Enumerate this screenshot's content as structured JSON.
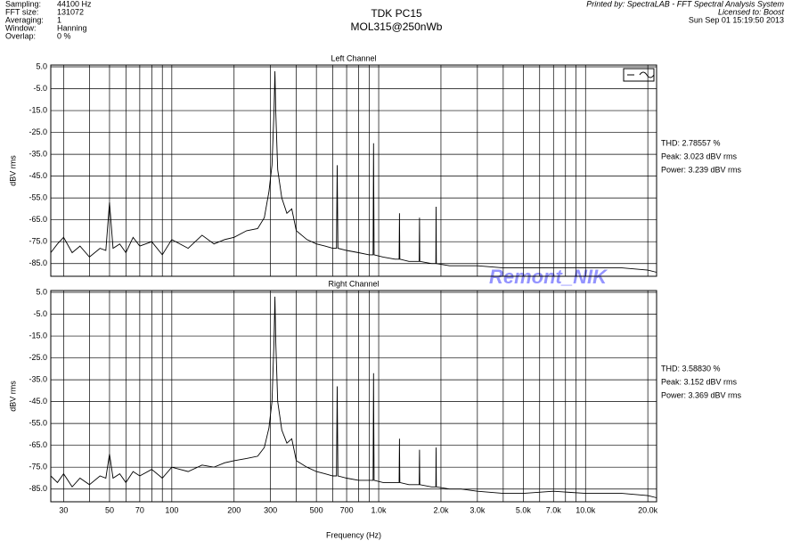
{
  "header": {
    "settings": [
      {
        "label": "Sampling:",
        "value": "44100 Hz"
      },
      {
        "label": "FFT size:",
        "value": "131072"
      },
      {
        "label": "Averaging:",
        "value": "1"
      },
      {
        "label": "Window:",
        "value": "Hanning"
      },
      {
        "label": "Overlap:",
        "value": "0 %"
      }
    ],
    "title": "TDK PC15",
    "subtitle": "MOL315@250nWb",
    "printed_by": "Printed by: SpectraLAB - FFT Spectral Analysis System",
    "licensed_to": "Licensed to: Boost",
    "date": "Sun Sep 01 15:19:50 2013",
    "watermark": "Remont_NIK"
  },
  "chart_data": [
    {
      "type": "line",
      "title": "Left Channel",
      "y_label": "dBV rms",
      "log_x": true,
      "grid": true,
      "color": "#000000",
      "xlim": [
        26,
        22050
      ],
      "ylim": [
        -90,
        5
      ],
      "xticks": [
        30,
        50,
        70,
        100,
        200,
        300,
        500,
        700,
        1000,
        2000,
        3000,
        5000,
        7000,
        10000,
        20000
      ],
      "xminor": [
        40,
        60,
        80,
        90,
        400,
        600,
        800,
        900,
        4000,
        6000,
        8000,
        9000
      ],
      "yticks": [
        {
          "value": 5,
          "label": "5.0"
        },
        {
          "value": -5,
          "label": "-5.0"
        },
        {
          "value": -15,
          "label": "-15.0"
        },
        {
          "value": -25,
          "label": "-25.0"
        },
        {
          "value": -35,
          "label": "-35.0"
        },
        {
          "value": -45,
          "label": "-45.0"
        },
        {
          "value": -55,
          "label": "-55.0"
        },
        {
          "value": -65,
          "label": "-65.0"
        },
        {
          "value": -75,
          "label": "-75.0"
        },
        {
          "value": -85,
          "label": "-85.0"
        }
      ],
      "annotations": [
        "THD: 2.78557 %",
        "Peak: 3.023 dBV rms",
        "Power: 3.239 dBV rms"
      ],
      "x": [
        26,
        28,
        30,
        33,
        36,
        40,
        45,
        48,
        50,
        52,
        56,
        60,
        65,
        70,
        80,
        90,
        100,
        120,
        140,
        160,
        180,
        200,
        230,
        260,
        280,
        295,
        305,
        312,
        315,
        318,
        325,
        340,
        360,
        380,
        400,
        450,
        500,
        550,
        600,
        625,
        630,
        635,
        700,
        800,
        900,
        940,
        945,
        950,
        1050,
        1200,
        1255,
        1260,
        1265,
        1400,
        1570,
        1575,
        1580,
        1800,
        1890,
        1895,
        1900,
        2200,
        2500,
        3000,
        4000,
        5000,
        7000,
        10000,
        15000,
        20000,
        22050
      ],
      "series": [
        {
          "values": [
            -80,
            -76,
            -73,
            -80,
            -77,
            -82,
            -78,
            -79,
            -57,
            -78,
            -76,
            -80,
            -73,
            -77,
            -75,
            -81,
            -74,
            -78,
            -72,
            -76,
            -74,
            -73,
            -70,
            -69,
            -64,
            -52,
            -40,
            -15,
            3,
            -15,
            -42,
            -55,
            -62,
            -60,
            -70,
            -74,
            -76,
            -77,
            -78,
            -78,
            -40,
            -78,
            -79,
            -80,
            -81,
            -81,
            -30,
            -81,
            -82,
            -83,
            -83,
            -62,
            -83,
            -84,
            -84,
            -64,
            -84,
            -85,
            -85,
            -59,
            -85,
            -86,
            -86,
            -86,
            -87,
            -87,
            -87,
            -87,
            -87,
            -88,
            -89
          ]
        }
      ]
    },
    {
      "type": "line",
      "title": "Right Channel",
      "y_label": "dBV rms",
      "x_label": "Frequency (Hz)",
      "log_x": true,
      "grid": true,
      "color": "#000000",
      "xlim": [
        26,
        22050
      ],
      "ylim": [
        -90,
        5
      ],
      "xticks": [
        30,
        50,
        70,
        100,
        200,
        300,
        500,
        700,
        {
          "value": 1000,
          "label": "1.0k"
        },
        {
          "value": 2000,
          "label": "2.0k"
        },
        {
          "value": 3000,
          "label": "3.0k"
        },
        {
          "value": 5000,
          "label": "5.0k"
        },
        {
          "value": 7000,
          "label": "7.0k"
        },
        {
          "value": 10000,
          "label": "10.0k"
        },
        {
          "value": 20000,
          "label": "20.0k"
        }
      ],
      "xminor": [
        40,
        60,
        80,
        90,
        400,
        600,
        800,
        900,
        4000,
        6000,
        8000,
        9000
      ],
      "yticks": [
        {
          "value": 5,
          "label": "5.0"
        },
        {
          "value": -5,
          "label": "-5.0"
        },
        {
          "value": -15,
          "label": "-15.0"
        },
        {
          "value": -25,
          "label": "-25.0"
        },
        {
          "value": -35,
          "label": "-35.0"
        },
        {
          "value": -45,
          "label": "-45.0"
        },
        {
          "value": -55,
          "label": "-55.0"
        },
        {
          "value": -65,
          "label": "-65.0"
        },
        {
          "value": -75,
          "label": "-75.0"
        },
        {
          "value": -85,
          "label": "-85.0"
        }
      ],
      "annotations": [
        "THD: 3.58830 %",
        "Peak: 3.152 dBV rms",
        "Power: 3.369 dBV rms"
      ],
      "x": [
        26,
        28,
        30,
        33,
        36,
        40,
        45,
        48,
        50,
        52,
        56,
        60,
        65,
        70,
        80,
        90,
        100,
        120,
        140,
        160,
        180,
        200,
        230,
        260,
        280,
        295,
        305,
        312,
        315,
        318,
        325,
        340,
        360,
        380,
        400,
        450,
        500,
        550,
        600,
        625,
        630,
        635,
        700,
        800,
        900,
        940,
        945,
        950,
        1050,
        1200,
        1255,
        1260,
        1265,
        1400,
        1570,
        1575,
        1580,
        1800,
        1890,
        1895,
        1900,
        2200,
        2500,
        3000,
        4000,
        5000,
        7000,
        10000,
        15000,
        20000,
        22050
      ],
      "series": [
        {
          "values": [
            -79,
            -82,
            -78,
            -84,
            -80,
            -83,
            -79,
            -80,
            -69,
            -80,
            -78,
            -82,
            -77,
            -79,
            -76,
            -80,
            -75,
            -77,
            -74,
            -75,
            -73,
            -72,
            -71,
            -70,
            -66,
            -57,
            -45,
            -17,
            3,
            -17,
            -45,
            -58,
            -64,
            -62,
            -72,
            -75,
            -77,
            -78,
            -79,
            -79,
            -38,
            -79,
            -80,
            -81,
            -81,
            -81,
            -32,
            -81,
            -82,
            -82,
            -82,
            -62,
            -82,
            -83,
            -83,
            -67,
            -83,
            -84,
            -84,
            -66,
            -84,
            -85,
            -85,
            -86,
            -87,
            -87,
            -86,
            -87,
            -87,
            -88,
            -89
          ]
        }
      ]
    }
  ]
}
